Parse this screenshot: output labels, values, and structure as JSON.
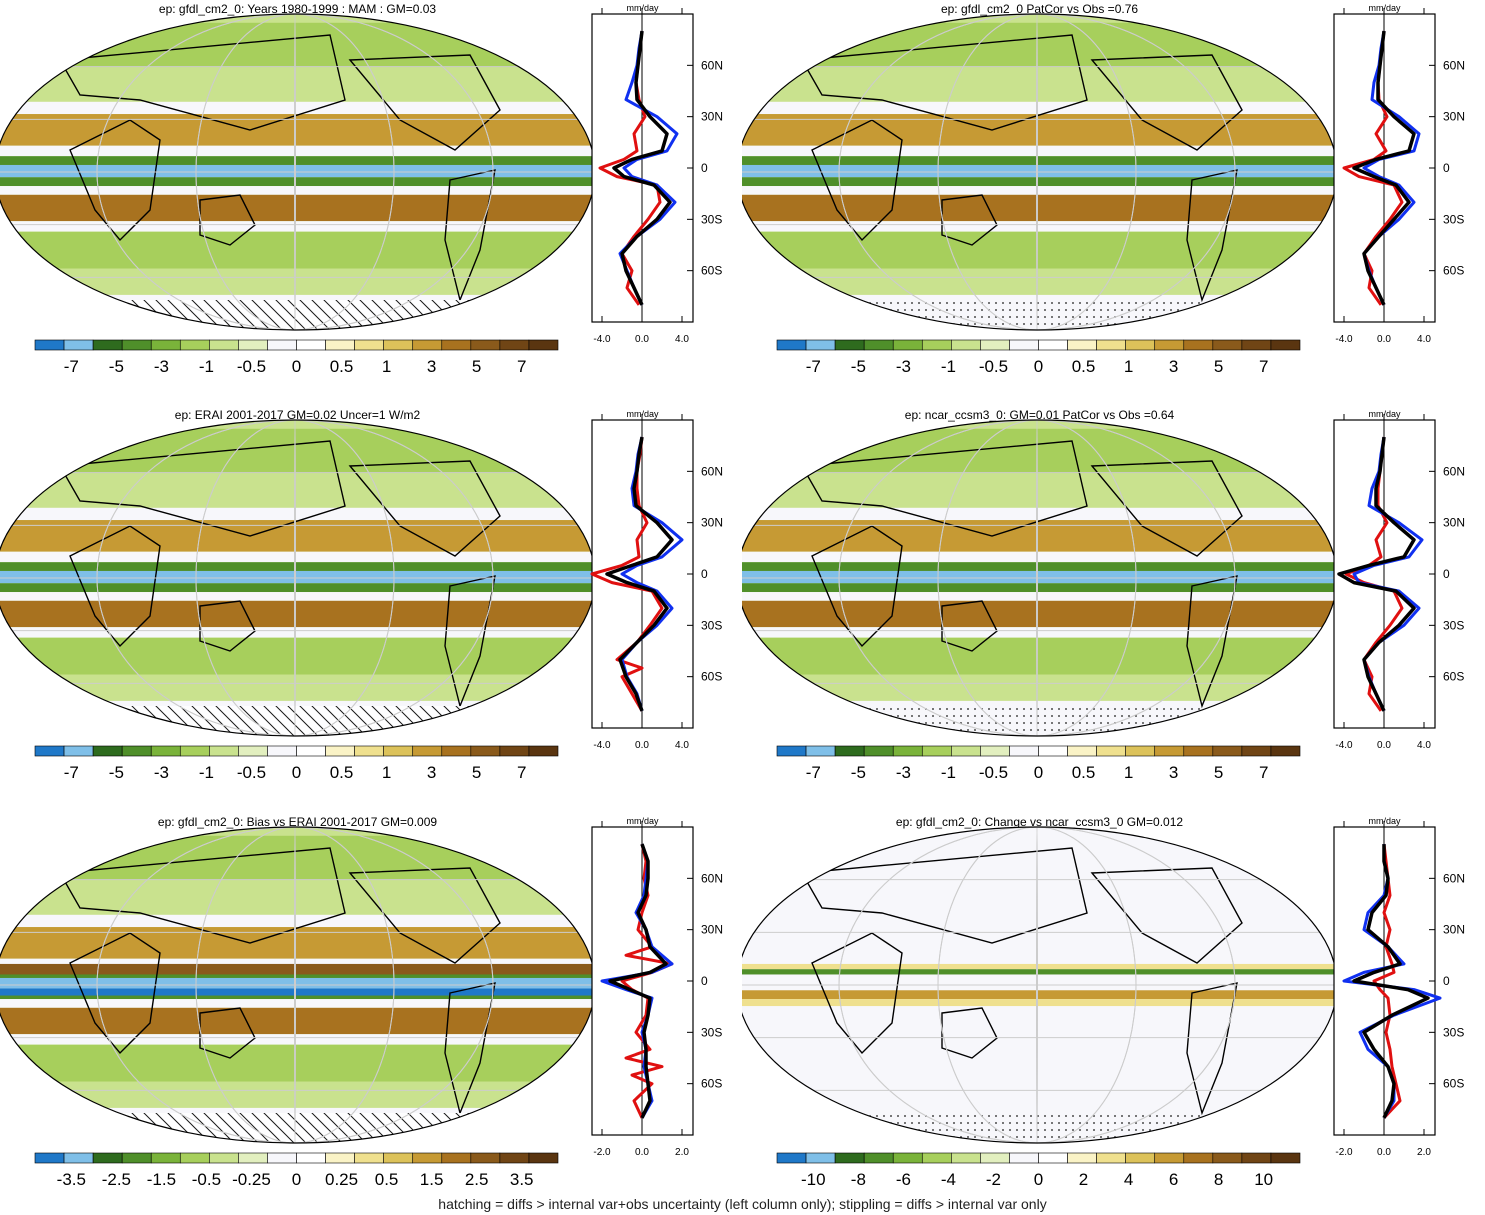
{
  "footer_note": "hatching = diffs > internal var+obs uncertainty (left column only); stippling = diffs > internal var only",
  "palette": {
    "standard": [
      "#1f78c8",
      "#7fbfe8",
      "#2e6b1e",
      "#4f8f2a",
      "#7ab33a",
      "#a7cf5c",
      "#c9e28e",
      "#e2efbf",
      "#f7f7fb",
      "#ffffff",
      "#faf3c6",
      "#efe08e",
      "#dcc25a",
      "#c69a34",
      "#a8721f",
      "#8a5a1b",
      "#704515",
      "#5a3510"
    ]
  },
  "chart_data": [
    {
      "type": "heatmap",
      "panel": "top-left",
      "title": "ep: gfdl_cm2_0: Years 1980-1999 : MAM : GM=0.03",
      "colorbar_labels": [
        "-7",
        "-5",
        "-3",
        "-1",
        "-0.5",
        "0",
        "0.5",
        "1",
        "3",
        "5",
        "7"
      ],
      "side_plot": {
        "type": "line",
        "unit_label": "mm/day",
        "xticks": [
          "-4.0",
          "0.0",
          "4.0"
        ],
        "yticks": [
          "60N",
          "30N",
          "0",
          "30S",
          "60S"
        ],
        "series": [
          {
            "color": "#e01010",
            "lat": [
              80,
              70,
              60,
              50,
              40,
              30,
              20,
              10,
              5,
              0,
              -5,
              -10,
              -20,
              -30,
              -40,
              -50,
              -60,
              -70,
              -80
            ],
            "x": [
              0,
              -0.2,
              -0.4,
              -0.6,
              -0.3,
              0.3,
              -0.8,
              -0.5,
              -1.8,
              -4.2,
              -2.5,
              1.5,
              1.8,
              0.6,
              -0.8,
              -2.0,
              -1.0,
              -1.5,
              -0.3
            ]
          },
          {
            "color": "#1030f0",
            "lat": [
              80,
              70,
              60,
              50,
              40,
              30,
              20,
              10,
              5,
              0,
              -5,
              -10,
              -20,
              -30,
              -40,
              -50,
              -60,
              -70,
              -80
            ],
            "x": [
              0,
              -0.3,
              -0.5,
              -1.0,
              -1.6,
              1.5,
              3.5,
              2.5,
              -0.5,
              -1.8,
              -1.0,
              1.5,
              3.3,
              1.8,
              -0.5,
              -2.2,
              -1.5,
              -0.8,
              0
            ]
          },
          {
            "color": "#000000",
            "lat": [
              80,
              70,
              60,
              50,
              40,
              30,
              20,
              10,
              5,
              0,
              -5,
              -10,
              -20,
              -30,
              -40,
              -50,
              -60,
              -70,
              -80
            ],
            "x": [
              0,
              -0.2,
              -0.4,
              -0.6,
              -0.5,
              0.8,
              2.5,
              2.0,
              -1.0,
              -2.8,
              -1.8,
              1.2,
              2.8,
              1.5,
              -0.5,
              -2.0,
              -1.6,
              -0.8,
              0
            ]
          }
        ]
      }
    },
    {
      "type": "heatmap",
      "panel": "top-right",
      "title": "ep: gfdl_cm2_0 PatCor vs Obs =0.76",
      "colorbar_labels": [
        "-7",
        "-5",
        "-3",
        "-1",
        "-0.5",
        "0",
        "0.5",
        "1",
        "3",
        "5",
        "7"
      ],
      "side_plot": {
        "type": "line",
        "unit_label": "mm/day",
        "xticks": [
          "-4.0",
          "0.0",
          "4.0"
        ],
        "yticks": [
          "60N",
          "30N",
          "0",
          "30S",
          "60S"
        ],
        "series": [
          {
            "color": "#e01010",
            "lat": [
              80,
              70,
              60,
              50,
              40,
              30,
              20,
              10,
              5,
              0,
              -5,
              -10,
              -20,
              -30,
              -40,
              -50,
              -60,
              -70,
              -80
            ],
            "x": [
              0,
              -0.2,
              -0.4,
              -0.6,
              -0.5,
              0.3,
              -0.8,
              0.2,
              -1.0,
              -4.0,
              -2.5,
              1.0,
              1.8,
              0.6,
              -0.8,
              -2.0,
              -1.2,
              -1.5,
              -0.3
            ]
          },
          {
            "color": "#1030f0",
            "lat": [
              80,
              70,
              60,
              50,
              40,
              30,
              20,
              10,
              5,
              0,
              -5,
              -10,
              -20,
              -30,
              -40,
              -50,
              -60,
              -70,
              -80
            ],
            "x": [
              0,
              -0.3,
              -0.5,
              -1.0,
              -1.2,
              1.5,
              3.5,
              3.0,
              -0.5,
              -2.0,
              -0.5,
              1.5,
              3.0,
              1.5,
              -0.5,
              -2.0,
              -1.5,
              -0.8,
              0
            ]
          },
          {
            "color": "#000000",
            "lat": [
              80,
              70,
              60,
              50,
              40,
              30,
              20,
              10,
              5,
              0,
              -5,
              -10,
              -20,
              -30,
              -40,
              -50,
              -60,
              -70,
              -80
            ],
            "x": [
              0,
              -0.2,
              -0.4,
              -0.6,
              -0.6,
              1.0,
              3.0,
              2.5,
              -0.8,
              -3.0,
              -1.0,
              1.2,
              2.5,
              1.0,
              -0.5,
              -2.0,
              -1.6,
              -0.8,
              0
            ]
          }
        ]
      }
    },
    {
      "type": "heatmap",
      "panel": "middle-left",
      "title": "ep: ERAI 2001-2017 GM=0.02 Uncer=1 W/m2",
      "colorbar_labels": [
        "-7",
        "-5",
        "-3",
        "-1",
        "-0.5",
        "0",
        "0.5",
        "1",
        "3",
        "5",
        "7"
      ],
      "side_plot": {
        "type": "line",
        "unit_label": "mm/day",
        "xticks": [
          "-4.0",
          "0.0",
          "4.0"
        ],
        "yticks": [
          "60N",
          "30N",
          "0",
          "30S",
          "60S"
        ],
        "series": [
          {
            "color": "#e01010",
            "lat": [
              80,
              70,
              60,
              50,
              40,
              30,
              20,
              10,
              5,
              0,
              -5,
              -10,
              -20,
              -30,
              -40,
              -50,
              -55,
              -60,
              -70,
              -80
            ],
            "x": [
              0,
              -0.2,
              -0.5,
              -0.5,
              -0.3,
              0.5,
              -0.5,
              -0.3,
              -2.0,
              -5.0,
              -3.0,
              1.0,
              2.0,
              0.8,
              -0.5,
              -2.5,
              0,
              -2.0,
              -1.0,
              0
            ]
          },
          {
            "color": "#1030f0",
            "lat": [
              80,
              70,
              60,
              50,
              40,
              30,
              20,
              10,
              5,
              0,
              -5,
              -10,
              -20,
              -30,
              -40,
              -50,
              -60,
              -70,
              -80
            ],
            "x": [
              0,
              -0.4,
              -0.6,
              -1.0,
              -0.8,
              2.0,
              4.0,
              2.0,
              -0.5,
              -2.0,
              -0.5,
              1.5,
              3.0,
              1.5,
              -0.5,
              -2.0,
              -1.5,
              -0.5,
              0
            ]
          },
          {
            "color": "#000000",
            "lat": [
              80,
              70,
              60,
              50,
              40,
              30,
              20,
              10,
              5,
              0,
              -5,
              -10,
              -20,
              -30,
              -40,
              -50,
              -60,
              -70,
              -80
            ],
            "x": [
              0,
              -0.3,
              -0.5,
              -0.8,
              -0.6,
              1.5,
              3.0,
              1.5,
              -1.0,
              -3.5,
              -1.5,
              1.2,
              2.5,
              1.2,
              -0.5,
              -2.2,
              -1.6,
              -0.6,
              0
            ]
          }
        ]
      }
    },
    {
      "type": "heatmap",
      "panel": "middle-right",
      "title": "ep: ncar_ccsm3_0: GM=0.01 PatCor vs Obs =0.64",
      "colorbar_labels": [
        "-7",
        "-5",
        "-3",
        "-1",
        "-0.5",
        "0",
        "0.5",
        "1",
        "3",
        "5",
        "7"
      ],
      "side_plot": {
        "type": "line",
        "unit_label": "mm/day",
        "xticks": [
          "-4.0",
          "0.0",
          "4.0"
        ],
        "yticks": [
          "60N",
          "30N",
          "0",
          "30S",
          "60S"
        ],
        "series": [
          {
            "color": "#e01010",
            "lat": [
              80,
              70,
              60,
              50,
              40,
              30,
              20,
              10,
              5,
              0,
              -5,
              -10,
              -20,
              -30,
              -40,
              -50,
              -60,
              -70,
              -80
            ],
            "x": [
              0,
              -0.2,
              -0.4,
              -0.6,
              -0.6,
              0.3,
              -0.8,
              -0.3,
              -1.5,
              -3.8,
              -2.0,
              1.0,
              1.8,
              0.6,
              -0.8,
              -2.0,
              -1.2,
              -1.5,
              -0.3
            ]
          },
          {
            "color": "#1030f0",
            "lat": [
              80,
              70,
              60,
              50,
              40,
              30,
              20,
              10,
              5,
              0,
              -5,
              -10,
              -20,
              -30,
              -40,
              -50,
              -60,
              -70,
              -80
            ],
            "x": [
              0,
              -0.3,
              -0.5,
              -1.2,
              -1.5,
              1.5,
              3.8,
              2.5,
              -1.0,
              -3.0,
              -2.5,
              1.5,
              3.5,
              2.0,
              -0.5,
              -2.0,
              -1.5,
              -0.8,
              0
            ]
          },
          {
            "color": "#000000",
            "lat": [
              80,
              70,
              60,
              50,
              40,
              30,
              20,
              10,
              5,
              0,
              -5,
              -10,
              -20,
              -30,
              -40,
              -50,
              -60,
              -70,
              -80
            ],
            "x": [
              0,
              -0.2,
              -0.4,
              -0.8,
              -0.8,
              1.0,
              3.0,
              2.0,
              -1.5,
              -4.5,
              -3.0,
              1.2,
              3.0,
              1.5,
              -0.5,
              -2.0,
              -1.6,
              -0.8,
              0
            ]
          }
        ]
      }
    },
    {
      "type": "heatmap",
      "panel": "bottom-left",
      "title": "ep: gfdl_cm2_0: Bias vs ERAI 2001-2017 GM=0.009",
      "colorbar_labels": [
        "-3.5",
        "-2.5",
        "-1.5",
        "-0.5",
        "-0.25",
        "0",
        "0.25",
        "0.5",
        "1.5",
        "2.5",
        "3.5"
      ],
      "side_plot": {
        "type": "line",
        "unit_label": "mm/day",
        "xticks": [
          "-2.0",
          "0.0",
          "2.0"
        ],
        "yticks": [
          "60N",
          "30N",
          "0",
          "30S",
          "60S"
        ],
        "series": [
          {
            "color": "#e01010",
            "lat": [
              80,
              70,
              60,
              50,
              40,
              30,
              20,
              15,
              10,
              5,
              0,
              -5,
              -10,
              -20,
              -30,
              -40,
              -45,
              -50,
              -55,
              -60,
              -70,
              -80
            ],
            "x": [
              0,
              0.2,
              0.1,
              0.3,
              0,
              -0.2,
              0.5,
              -0.8,
              1.5,
              0.5,
              -1.0,
              -0.5,
              0.3,
              0.2,
              -0.3,
              0.4,
              -0.8,
              1.0,
              -0.5,
              0.5,
              -0.4,
              0
            ]
          },
          {
            "color": "#1030f0",
            "lat": [
              80,
              70,
              60,
              50,
              40,
              30,
              20,
              10,
              5,
              0,
              -5,
              -10,
              -20,
              -30,
              -40,
              -50,
              -60,
              -70,
              -80
            ],
            "x": [
              0,
              0.3,
              0.2,
              0.1,
              -0.3,
              0.2,
              0.5,
              1.5,
              0.5,
              -2.0,
              -0.8,
              0.5,
              0.3,
              0,
              0.2,
              0.1,
              0.3,
              0.5,
              0
            ]
          },
          {
            "color": "#000000",
            "lat": [
              80,
              70,
              60,
              50,
              40,
              30,
              20,
              10,
              5,
              0,
              -5,
              -10,
              -20,
              -30,
              -40,
              -50,
              -60,
              -70,
              -80
            ],
            "x": [
              0,
              0.3,
              0.3,
              0.2,
              -0.2,
              0.2,
              0.4,
              1.2,
              0.4,
              -1.6,
              -0.6,
              0.4,
              0.3,
              0.1,
              0.2,
              0.2,
              0.3,
              0.4,
              0
            ]
          }
        ]
      }
    },
    {
      "type": "heatmap",
      "panel": "bottom-right",
      "title": "ep: gfdl_cm2_0: Change vs ncar_ccsm3_0 GM=0.012",
      "colorbar_labels": [
        "-10",
        "-8",
        "-6",
        "-4",
        "-2",
        "0",
        "2",
        "4",
        "6",
        "8",
        "10"
      ],
      "side_plot": {
        "type": "line",
        "unit_label": "mm/day",
        "xticks": [
          "-2.0",
          "0.0",
          "2.0"
        ],
        "yticks": [
          "60N",
          "30N",
          "0",
          "30S",
          "60S"
        ],
        "series": [
          {
            "color": "#e01010",
            "lat": [
              80,
              70,
              60,
              50,
              40,
              30,
              20,
              10,
              5,
              0,
              -5,
              -10,
              -20,
              -30,
              -40,
              -50,
              -60,
              -70,
              -80
            ],
            "x": [
              0,
              0.1,
              0.2,
              0.3,
              0,
              0.3,
              0.1,
              0.4,
              0.5,
              -0.5,
              -0.2,
              0.2,
              0.3,
              0.1,
              0.3,
              0.4,
              0.6,
              0.8,
              0
            ]
          },
          {
            "color": "#1030f0",
            "lat": [
              80,
              70,
              60,
              50,
              40,
              30,
              20,
              10,
              5,
              0,
              -5,
              -10,
              -20,
              -30,
              -40,
              -50,
              -60,
              -70,
              -80
            ],
            "x": [
              0,
              0,
              0.2,
              0,
              -0.8,
              -1.0,
              0.2,
              1.0,
              -1.0,
              -2.0,
              1.5,
              2.8,
              0.5,
              -1.2,
              -0.8,
              0.2,
              0.5,
              0.5,
              0
            ]
          },
          {
            "color": "#000000",
            "lat": [
              80,
              70,
              60,
              50,
              40,
              30,
              20,
              10,
              5,
              0,
              -5,
              -10,
              -20,
              -30,
              -40,
              -50,
              -60,
              -70,
              -80
            ],
            "x": [
              0,
              0,
              0.2,
              0.1,
              -0.6,
              -0.8,
              0.2,
              0.8,
              -0.5,
              -1.5,
              1.2,
              2.2,
              0.4,
              -1.0,
              -0.5,
              0.2,
              0.5,
              0.4,
              0
            ]
          }
        ]
      }
    }
  ]
}
